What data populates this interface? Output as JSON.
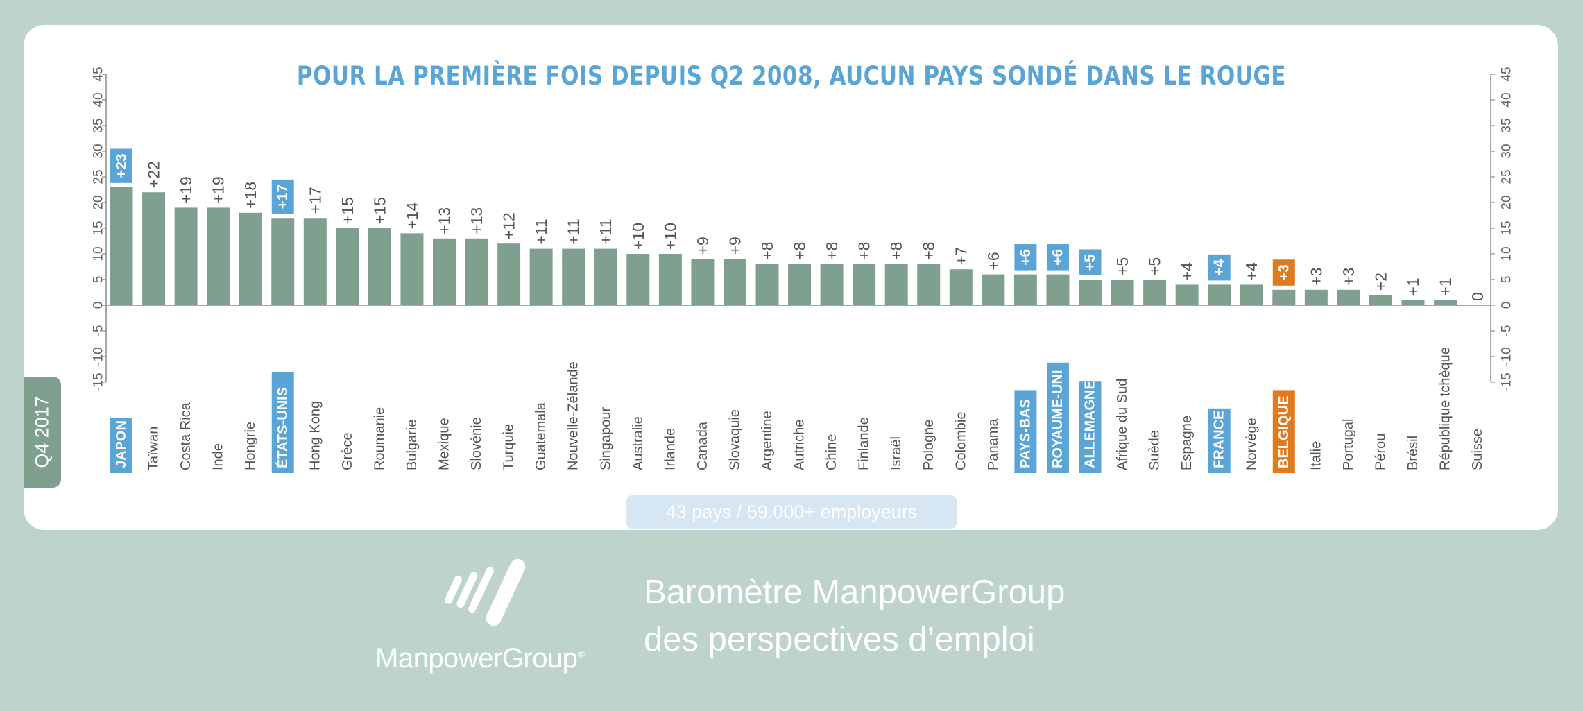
{
  "chart_data": {
    "type": "bar",
    "title": "POUR LA PREMIÈRE FOIS DEPUIS Q2 2008,  AUCUN PAYS SONDÉ DANS LE ROUGE",
    "xlabel": "",
    "ylabel": "",
    "ylim": [
      -15,
      45
    ],
    "yticks": [
      -15,
      -10,
      -5,
      0,
      5,
      10,
      15,
      20,
      25,
      30,
      35,
      40,
      45
    ],
    "grid": false,
    "categories": [
      "JAPON",
      "Taïwan",
      "Costa Rica",
      "Inde",
      "Hongrie",
      "ÉTATS-UNIS",
      "Hong Kong",
      "Grèce",
      "Roumanie",
      "Bulgarie",
      "Mexique",
      "Slovénie",
      "Turquie",
      "Guatemala",
      "Nouvelle-Zélande",
      "Singapour",
      "Australie",
      "Irlande",
      "Canada",
      "Slovaquie",
      "Argentine",
      "Autriche",
      "Chine",
      "Finlande",
      "Israël",
      "Pologne",
      "Colombie",
      "Panama",
      "PAYS-BAS",
      "ROYAUME-UNI",
      "ALLEMAGNE",
      "Afrique du Sud",
      "Suède",
      "Espagne",
      "FRANCE",
      "Norvège",
      "BELGIQUE",
      "Italie",
      "Portugal",
      "Pérou",
      "Brésil",
      "République tchèque",
      "Suisse"
    ],
    "values": [
      23,
      22,
      19,
      19,
      18,
      17,
      17,
      15,
      15,
      14,
      13,
      13,
      12,
      11,
      11,
      11,
      10,
      10,
      9,
      9,
      8,
      8,
      8,
      8,
      8,
      8,
      7,
      6,
      6,
      6,
      5,
      5,
      5,
      4,
      4,
      4,
      3,
      3,
      3,
      2,
      1,
      1,
      0
    ],
    "value_labels": [
      "+23",
      "+22",
      "+19",
      "+19",
      "+18",
      "+17",
      "+17",
      "+15",
      "+15",
      "+14",
      "+13",
      "+13",
      "+12",
      "+11",
      "+11",
      "+11",
      "+10",
      "+10",
      "+9",
      "+9",
      "+8",
      "+8",
      "+8",
      "+8",
      "+8",
      "+8",
      "+7",
      "+6",
      "+6",
      "+6",
      "+5",
      "+5",
      "+5",
      "+4",
      "+4",
      "+4",
      "+3",
      "+3",
      "+3",
      "+2",
      "+1",
      "+1",
      "0"
    ],
    "highlight_blue": [
      "JAPON",
      "ÉTATS-UNIS",
      "PAYS-BAS",
      "ROYAUME-UNI",
      "ALLEMAGNE",
      "FRANCE"
    ],
    "highlight_orange": [
      "BELGIQUE"
    ],
    "colors": {
      "bar": "#7fa08f",
      "highlight_blue": "#5aa5d6",
      "highlight_orange": "#e07a1f",
      "axis": "#8a8a8a"
    }
  },
  "badge": {
    "period": "Q4 2017"
  },
  "footer": {
    "sample": "43 pays / 59.000+ employeurs",
    "brand": "ManpowerGroup",
    "brand_mark": "®",
    "subtitle_line1": "Baromètre ManpowerGroup",
    "subtitle_line2": "des perspectives d’emploi"
  }
}
